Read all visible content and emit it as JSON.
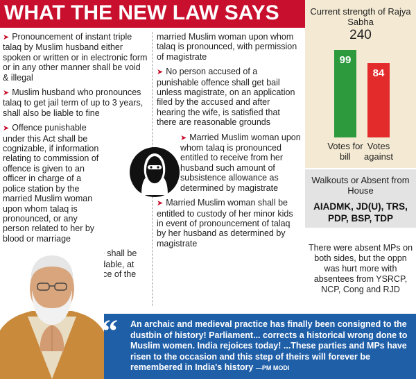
{
  "header": {
    "title": "WHAT THE NEW LAW SAYS"
  },
  "left_column": [
    "Pronouncement of instant triple talaq by Muslim husband either spoken or written or in electronic form or in any other manner  shall be void & illegal",
    "Muslim husband who pronounces talaq to get jail term of up to 3 years, shall also be liable to fine",
    "Offence punishable under this Act shall be cognizable, if information relating to commission of offence is given to an officer in charge of a police station by the married Muslim woman upon whom talaq is pronounced, or any person related to her by blood or marriage",
    "Offence shall be compoundable, at the instance of the"
  ],
  "right_column": [
    "married Muslim woman upon whom talaq is pronounced, with permission of magistrate",
    "No person accused of a punishable offence shall get bail unless magistrate, on an application filed by the accused and after hearing the wife, is satisfied that there are reasonable grounds",
    "Married Muslim woman upon whom talaq is pronounced entitled to receive from her husband such amount of subsistence allowance as determined by magistrate",
    "Married Muslim woman shall be entitled to custody of her minor kids in event of pronouncement of talaq by her husband as determined by magistrate"
  ],
  "sidebar": {
    "strength_label": "Current strength of Rajya Sabha",
    "strength_value": "240",
    "walkouts_label": "Walkouts or Absent from House",
    "walkouts_parties": "AIADMK, JD(U), TRS, PDP, BSP, TDP",
    "absent_note": "There were absent MPs on both sides, but the oppn was hurt more with absentees from  YSRCP, NCP, Cong and RJD"
  },
  "chart_data": {
    "type": "bar",
    "categories": [
      "Votes for bill",
      "Votes against"
    ],
    "values": [
      99,
      84
    ],
    "value_labels": [
      "99",
      "84"
    ],
    "colors": [
      "#2c9a3d",
      "#e42b2b"
    ]
  },
  "quote": {
    "mark": "“",
    "text": "An archaic and medieval practice has finally been consigned to the dustbin of history! Parliament... corrects a historical wrong done to Muslim women. India rejoices today! ...These parties and MPs have risen to the occasion and this step of theirs will forever be remembered in India's history",
    "attribution": "—PM MODI"
  },
  "colors": {
    "accent": "#c8102e",
    "quote_bg": "#1f5fa8",
    "panel": "#f4ead3"
  }
}
